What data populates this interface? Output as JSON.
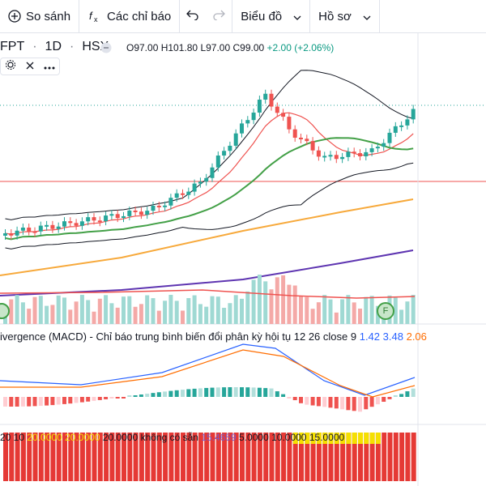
{
  "toolbar": {
    "compare_label": "So sánh",
    "indicators_label": "Các chỉ báo",
    "chart_label": "Biểu đồ",
    "profile_label": "Hồ sơ"
  },
  "symbol": {
    "ticker": "FPT",
    "interval": "1D",
    "exchange": "HSX",
    "open": "O97.00",
    "high": "H101.80",
    "low": "L97.00",
    "close": "C99.00",
    "change": "+2.00 (+2.06%)"
  },
  "volume_marker": "F",
  "macd": {
    "title": "ivergence (MACD) - Chỉ báo trung bình biến đổi phân kỳ hội tụ 12 26 close 9",
    "v1": "1.42",
    "v2": "3.48",
    "v3": "2.06"
  },
  "bottom_indicator": {
    "params": "20 10",
    "val1": "20.0000",
    "val2": "20.0000",
    "val3": "20.0000",
    "na": "không có sẵn",
    "val4": "15.4659",
    "val5": "5.0000",
    "val6": "10.0000",
    "val7": "15.0000"
  },
  "colors": {
    "up": "#26a69a",
    "down": "#ef5350",
    "ma_green": "#43a047",
    "ma_orange": "#f7a93b",
    "ma_purple": "#5e35b1",
    "macd_blue": "#2962ff",
    "macd_orange": "#ff6d00"
  },
  "icons": [
    "plus-circle-icon",
    "fx-icon",
    "undo-icon",
    "redo-icon",
    "chevron-down-icon",
    "collapse-icon",
    "gear-icon",
    "close-icon",
    "more-icon"
  ]
}
